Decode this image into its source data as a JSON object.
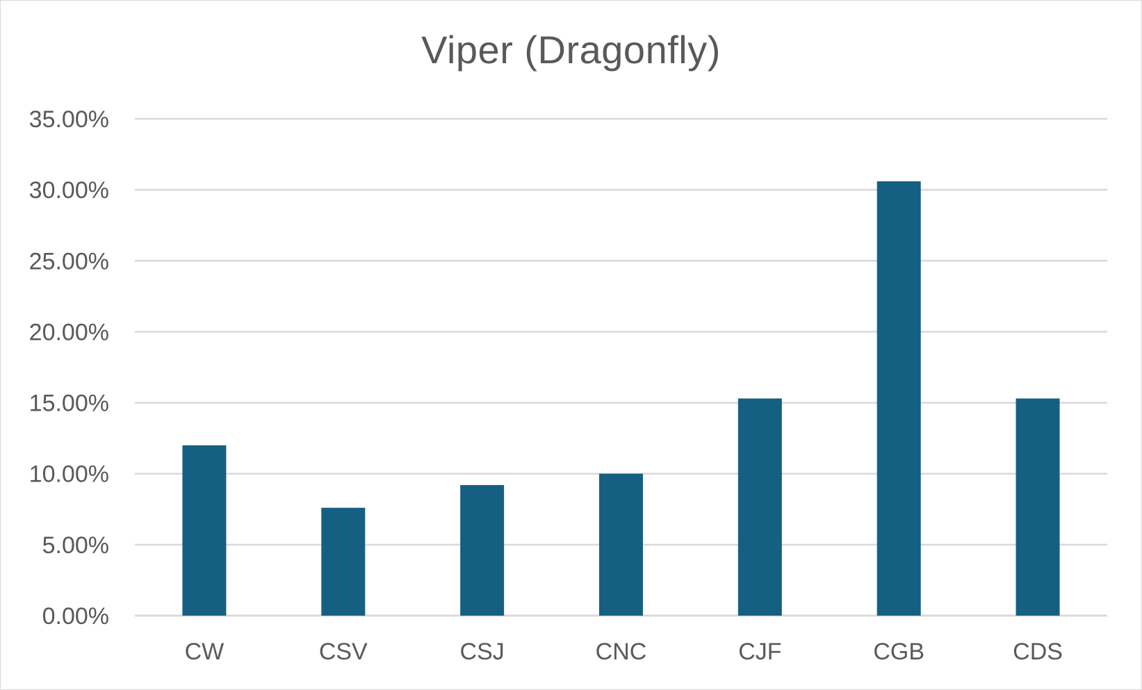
{
  "chart_data": {
    "type": "bar",
    "title": "Viper (Dragonfly)",
    "xlabel": "",
    "ylabel": "",
    "categories": [
      "CW",
      "CSV",
      "CSJ",
      "CNC",
      "CJF",
      "CGB",
      "CDS"
    ],
    "values": [
      0.12,
      0.076,
      0.092,
      0.1,
      0.153,
      0.306,
      0.153
    ],
    "ylim": [
      0,
      0.35
    ],
    "yticks": [
      0,
      0.05,
      0.1,
      0.15,
      0.2,
      0.25,
      0.3,
      0.35
    ],
    "ytick_labels": [
      "0.00%",
      "5.00%",
      "10.00%",
      "15.00%",
      "20.00%",
      "25.00%",
      "30.00%",
      "35.00%"
    ],
    "grid": true,
    "legend": "none",
    "bar_color": "#156082",
    "grid_color": "#d9d9d9",
    "text_color": "#595959"
  }
}
